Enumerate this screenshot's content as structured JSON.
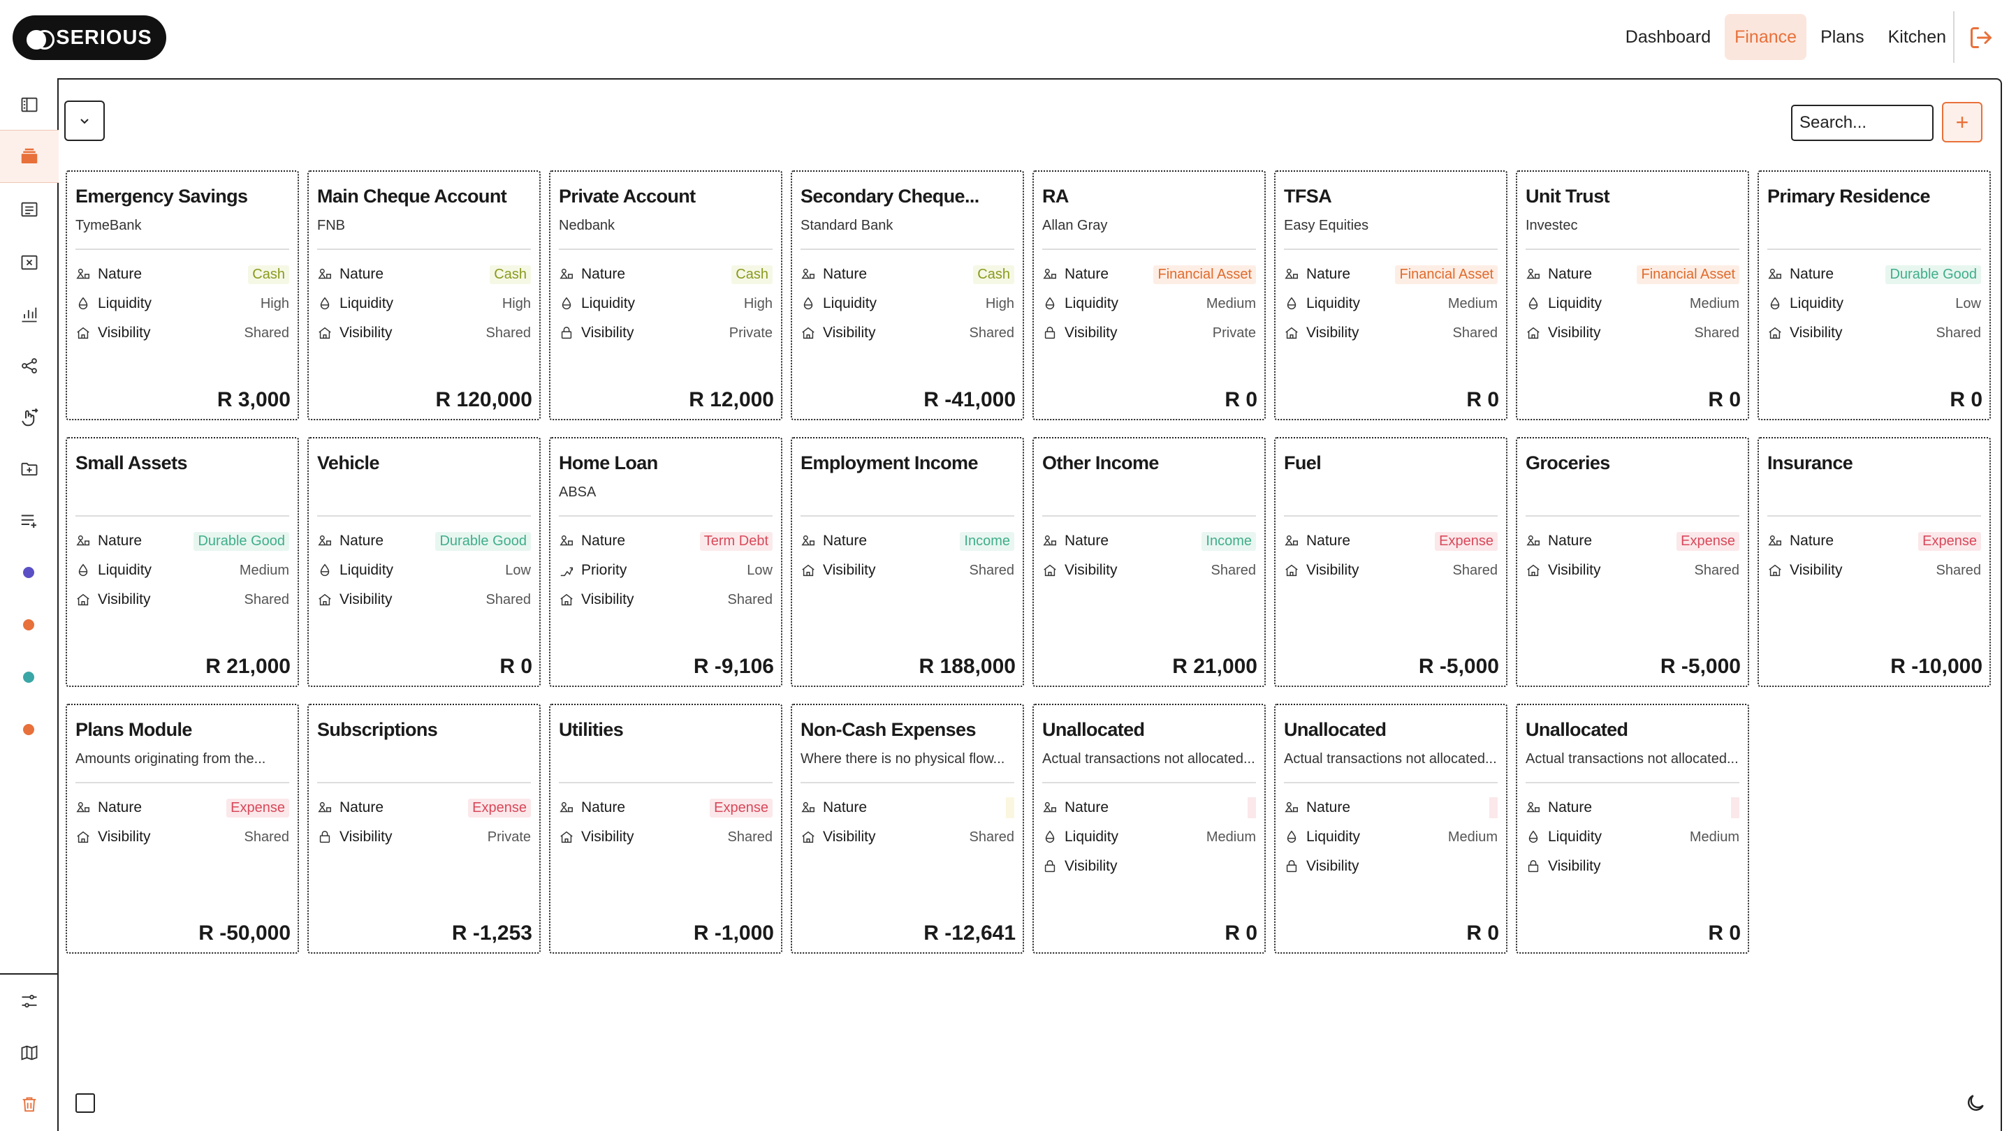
{
  "brand": {
    "name": "SERIOUS"
  },
  "nav": [
    {
      "label": "Dashboard",
      "active": false
    },
    {
      "label": "Finance",
      "active": true
    },
    {
      "label": "Plans",
      "active": false
    },
    {
      "label": "Kitchen",
      "active": false
    }
  ],
  "search": {
    "placeholder": "Search..."
  },
  "add_label": "+",
  "sidebar_icons": [
    "book-icon",
    "stack-icon",
    "list-icon",
    "chart-cross-icon",
    "bar-chart-icon",
    "share-icon",
    "hand-swipe-icon",
    "folder-plus-icon",
    "list-add-icon",
    "sliders-icon",
    "map-icon",
    "trash-icon"
  ],
  "sidebar_dot_colors": [
    "#5a4fc4",
    "#e8703a",
    "#3aa6a6",
    "#e8703a"
  ],
  "cards": [
    {
      "title": "Emergency Savings",
      "subtitle": "TymeBank",
      "rows": [
        [
          "Nature",
          "Cash",
          "b-cash"
        ],
        [
          "Liquidity",
          "High",
          ""
        ],
        [
          "Visibility",
          "Shared",
          ""
        ]
      ],
      "amount": "R 3,000"
    },
    {
      "title": "Main Cheque Account",
      "subtitle": "FNB",
      "rows": [
        [
          "Nature",
          "Cash",
          "b-cash"
        ],
        [
          "Liquidity",
          "High",
          ""
        ],
        [
          "Visibility",
          "Shared",
          ""
        ]
      ],
      "amount": "R 120,000"
    },
    {
      "title": "Private Account",
      "subtitle": "Nedbank",
      "rows": [
        [
          "Nature",
          "Cash",
          "b-cash"
        ],
        [
          "Liquidity",
          "High",
          ""
        ],
        [
          "Visibility",
          "Private",
          ""
        ]
      ],
      "amount": "R 12,000"
    },
    {
      "title": "Secondary Cheque...",
      "subtitle": "Standard Bank",
      "rows": [
        [
          "Nature",
          "Cash",
          "b-cash"
        ],
        [
          "Liquidity",
          "High",
          ""
        ],
        [
          "Visibility",
          "Shared",
          ""
        ]
      ],
      "amount": "R -41,000"
    },
    {
      "title": "RA",
      "subtitle": "Allan Gray",
      "rows": [
        [
          "Nature",
          "Financial Asset",
          "b-fa"
        ],
        [
          "Liquidity",
          "Medium",
          ""
        ],
        [
          "Visibility",
          "Private",
          ""
        ]
      ],
      "amount": "R 0"
    },
    {
      "title": "TFSA",
      "subtitle": "Easy Equities",
      "rows": [
        [
          "Nature",
          "Financial Asset",
          "b-fa"
        ],
        [
          "Liquidity",
          "Medium",
          ""
        ],
        [
          "Visibility",
          "Shared",
          ""
        ]
      ],
      "amount": "R 0"
    },
    {
      "title": "Unit Trust",
      "subtitle": "Investec",
      "rows": [
        [
          "Nature",
          "Financial Asset",
          "b-fa"
        ],
        [
          "Liquidity",
          "Medium",
          ""
        ],
        [
          "Visibility",
          "Shared",
          ""
        ]
      ],
      "amount": "R 0"
    },
    {
      "title": "Primary Residence",
      "subtitle": "",
      "rows": [
        [
          "Nature",
          "Durable Good",
          "b-dg"
        ],
        [
          "Liquidity",
          "Low",
          ""
        ],
        [
          "Visibility",
          "Shared",
          ""
        ]
      ],
      "amount": "R 0"
    },
    {
      "title": "Small Assets",
      "subtitle": "",
      "rows": [
        [
          "Nature",
          "Durable Good",
          "b-dg"
        ],
        [
          "Liquidity",
          "Medium",
          ""
        ],
        [
          "Visibility",
          "Shared",
          ""
        ]
      ],
      "amount": "R 21,000"
    },
    {
      "title": "Vehicle",
      "subtitle": "",
      "rows": [
        [
          "Nature",
          "Durable Good",
          "b-dg"
        ],
        [
          "Liquidity",
          "Low",
          ""
        ],
        [
          "Visibility",
          "Shared",
          ""
        ]
      ],
      "amount": "R 0"
    },
    {
      "title": "Home Loan",
      "subtitle": "ABSA",
      "rows": [
        [
          "Nature",
          "Term Debt",
          "b-td"
        ],
        [
          "Priority",
          "Low",
          ""
        ],
        [
          "Visibility",
          "Shared",
          ""
        ]
      ],
      "amount": "R -9,106"
    },
    {
      "title": "Employment Income",
      "subtitle": "",
      "rows": [
        [
          "Nature",
          "Income",
          "b-inc"
        ],
        [
          "Visibility",
          "Shared",
          ""
        ]
      ],
      "amount": "R 188,000"
    },
    {
      "title": "Other Income",
      "subtitle": "",
      "rows": [
        [
          "Nature",
          "Income",
          "b-inc"
        ],
        [
          "Visibility",
          "Shared",
          ""
        ]
      ],
      "amount": "R 21,000"
    },
    {
      "title": "Fuel",
      "subtitle": "",
      "rows": [
        [
          "Nature",
          "Expense",
          "b-exp"
        ],
        [
          "Visibility",
          "Shared",
          ""
        ]
      ],
      "amount": "R -5,000"
    },
    {
      "title": "Groceries",
      "subtitle": "",
      "rows": [
        [
          "Nature",
          "Expense",
          "b-exp"
        ],
        [
          "Visibility",
          "Shared",
          ""
        ]
      ],
      "amount": "R -5,000"
    },
    {
      "title": "Insurance",
      "subtitle": "",
      "rows": [
        [
          "Nature",
          "Expense",
          "b-exp"
        ],
        [
          "Visibility",
          "Shared",
          ""
        ]
      ],
      "amount": "R -10,000"
    },
    {
      "title": "Plans Module",
      "subtitle": "Amounts originating from the...",
      "rows": [
        [
          "Nature",
          "Expense",
          "b-exp"
        ],
        [
          "Visibility",
          "Shared",
          ""
        ]
      ],
      "amount": "R -50,000"
    },
    {
      "title": "Subscriptions",
      "subtitle": "",
      "rows": [
        [
          "Nature",
          "Expense",
          "b-exp"
        ],
        [
          "Visibility",
          "Private",
          ""
        ]
      ],
      "amount": "R -1,253"
    },
    {
      "title": "Utilities",
      "subtitle": "",
      "rows": [
        [
          "Nature",
          "Expense",
          "b-exp"
        ],
        [
          "Visibility",
          "Shared",
          ""
        ]
      ],
      "amount": "R -1,000"
    },
    {
      "title": "Non-Cash Expenses",
      "subtitle": "Where there is no physical flow...",
      "rows": [
        [
          "Nature",
          "",
          "b-empty-y"
        ],
        [
          "Visibility",
          "Shared",
          ""
        ]
      ],
      "amount": "R -12,641"
    },
    {
      "title": "Unallocated",
      "subtitle": "Actual transactions not allocated...",
      "rows": [
        [
          "Nature",
          "",
          "b-empty-r"
        ],
        [
          "Liquidity",
          "Medium",
          ""
        ],
        [
          "Visibility",
          "",
          ""
        ]
      ],
      "amount": "R 0"
    },
    {
      "title": "Unallocated",
      "subtitle": "Actual transactions not allocated...",
      "rows": [
        [
          "Nature",
          "",
          "b-empty-r"
        ],
        [
          "Liquidity",
          "Medium",
          ""
        ],
        [
          "Visibility",
          "",
          ""
        ]
      ],
      "amount": "R 0"
    },
    {
      "title": "Unallocated",
      "subtitle": "Actual transactions not allocated...",
      "rows": [
        [
          "Nature",
          "",
          "b-empty-r"
        ],
        [
          "Liquidity",
          "Medium",
          ""
        ],
        [
          "Visibility",
          "",
          ""
        ]
      ],
      "amount": "R 0"
    }
  ]
}
